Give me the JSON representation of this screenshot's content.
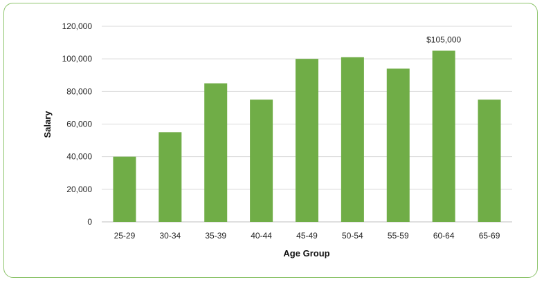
{
  "chart_data": {
    "type": "bar",
    "title": "",
    "xlabel": "Age Group",
    "ylabel": "Salary",
    "categories": [
      "25-29",
      "30-34",
      "35-39",
      "40-44",
      "45-49",
      "50-54",
      "55-59",
      "60-64",
      "65-69"
    ],
    "values": [
      40000,
      55000,
      85000,
      75000,
      100000,
      101000,
      94000,
      105000,
      75000
    ],
    "ylim": [
      0,
      120000
    ],
    "yticks": [
      "0",
      "20,000",
      "40,000",
      "60,000",
      "80,000",
      "100,000",
      "120,000"
    ],
    "grid": true,
    "legend": "none",
    "bar_color": "#70ad47",
    "frame_color": "#8cc36a",
    "annotations": [
      {
        "category": "60-64",
        "text": "$105,000"
      }
    ]
  }
}
